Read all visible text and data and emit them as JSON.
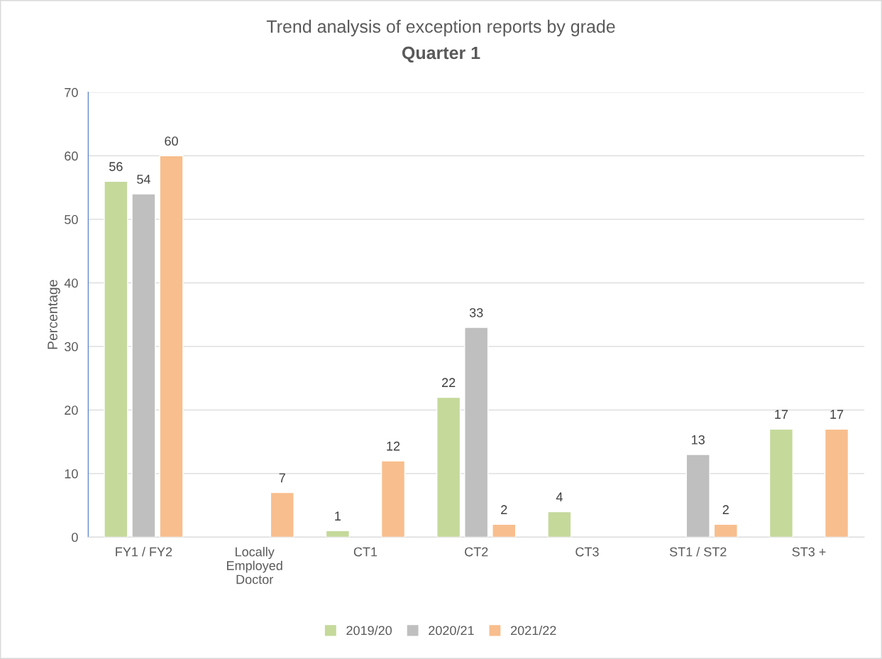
{
  "chart_data": {
    "type": "bar",
    "title": "Trend analysis of exception reports by grade",
    "subtitle": "Quarter 1",
    "ylabel": "Percentage",
    "categories": [
      "FY1 / FY2",
      "Locally\nEmployed\nDoctor",
      "CT1",
      "CT2",
      "CT3",
      "ST1 / ST2",
      "ST3 +"
    ],
    "series": [
      {
        "name": "2019/20",
        "color": "#c5d99b",
        "values": [
          56,
          null,
          1,
          22,
          4,
          null,
          17
        ]
      },
      {
        "name": "2020/21",
        "color": "#bfbfbf",
        "values": [
          54,
          null,
          null,
          33,
          null,
          13,
          null
        ]
      },
      {
        "name": "2021/22",
        "color": "#f8be8d",
        "values": [
          60,
          7,
          12,
          2,
          null,
          2,
          17
        ]
      }
    ],
    "ylim": [
      0,
      70
    ],
    "yticks": [
      0,
      10,
      20,
      30,
      40,
      50,
      60,
      70
    ],
    "grid": "y",
    "legend": "bottom",
    "data_labels": true
  }
}
